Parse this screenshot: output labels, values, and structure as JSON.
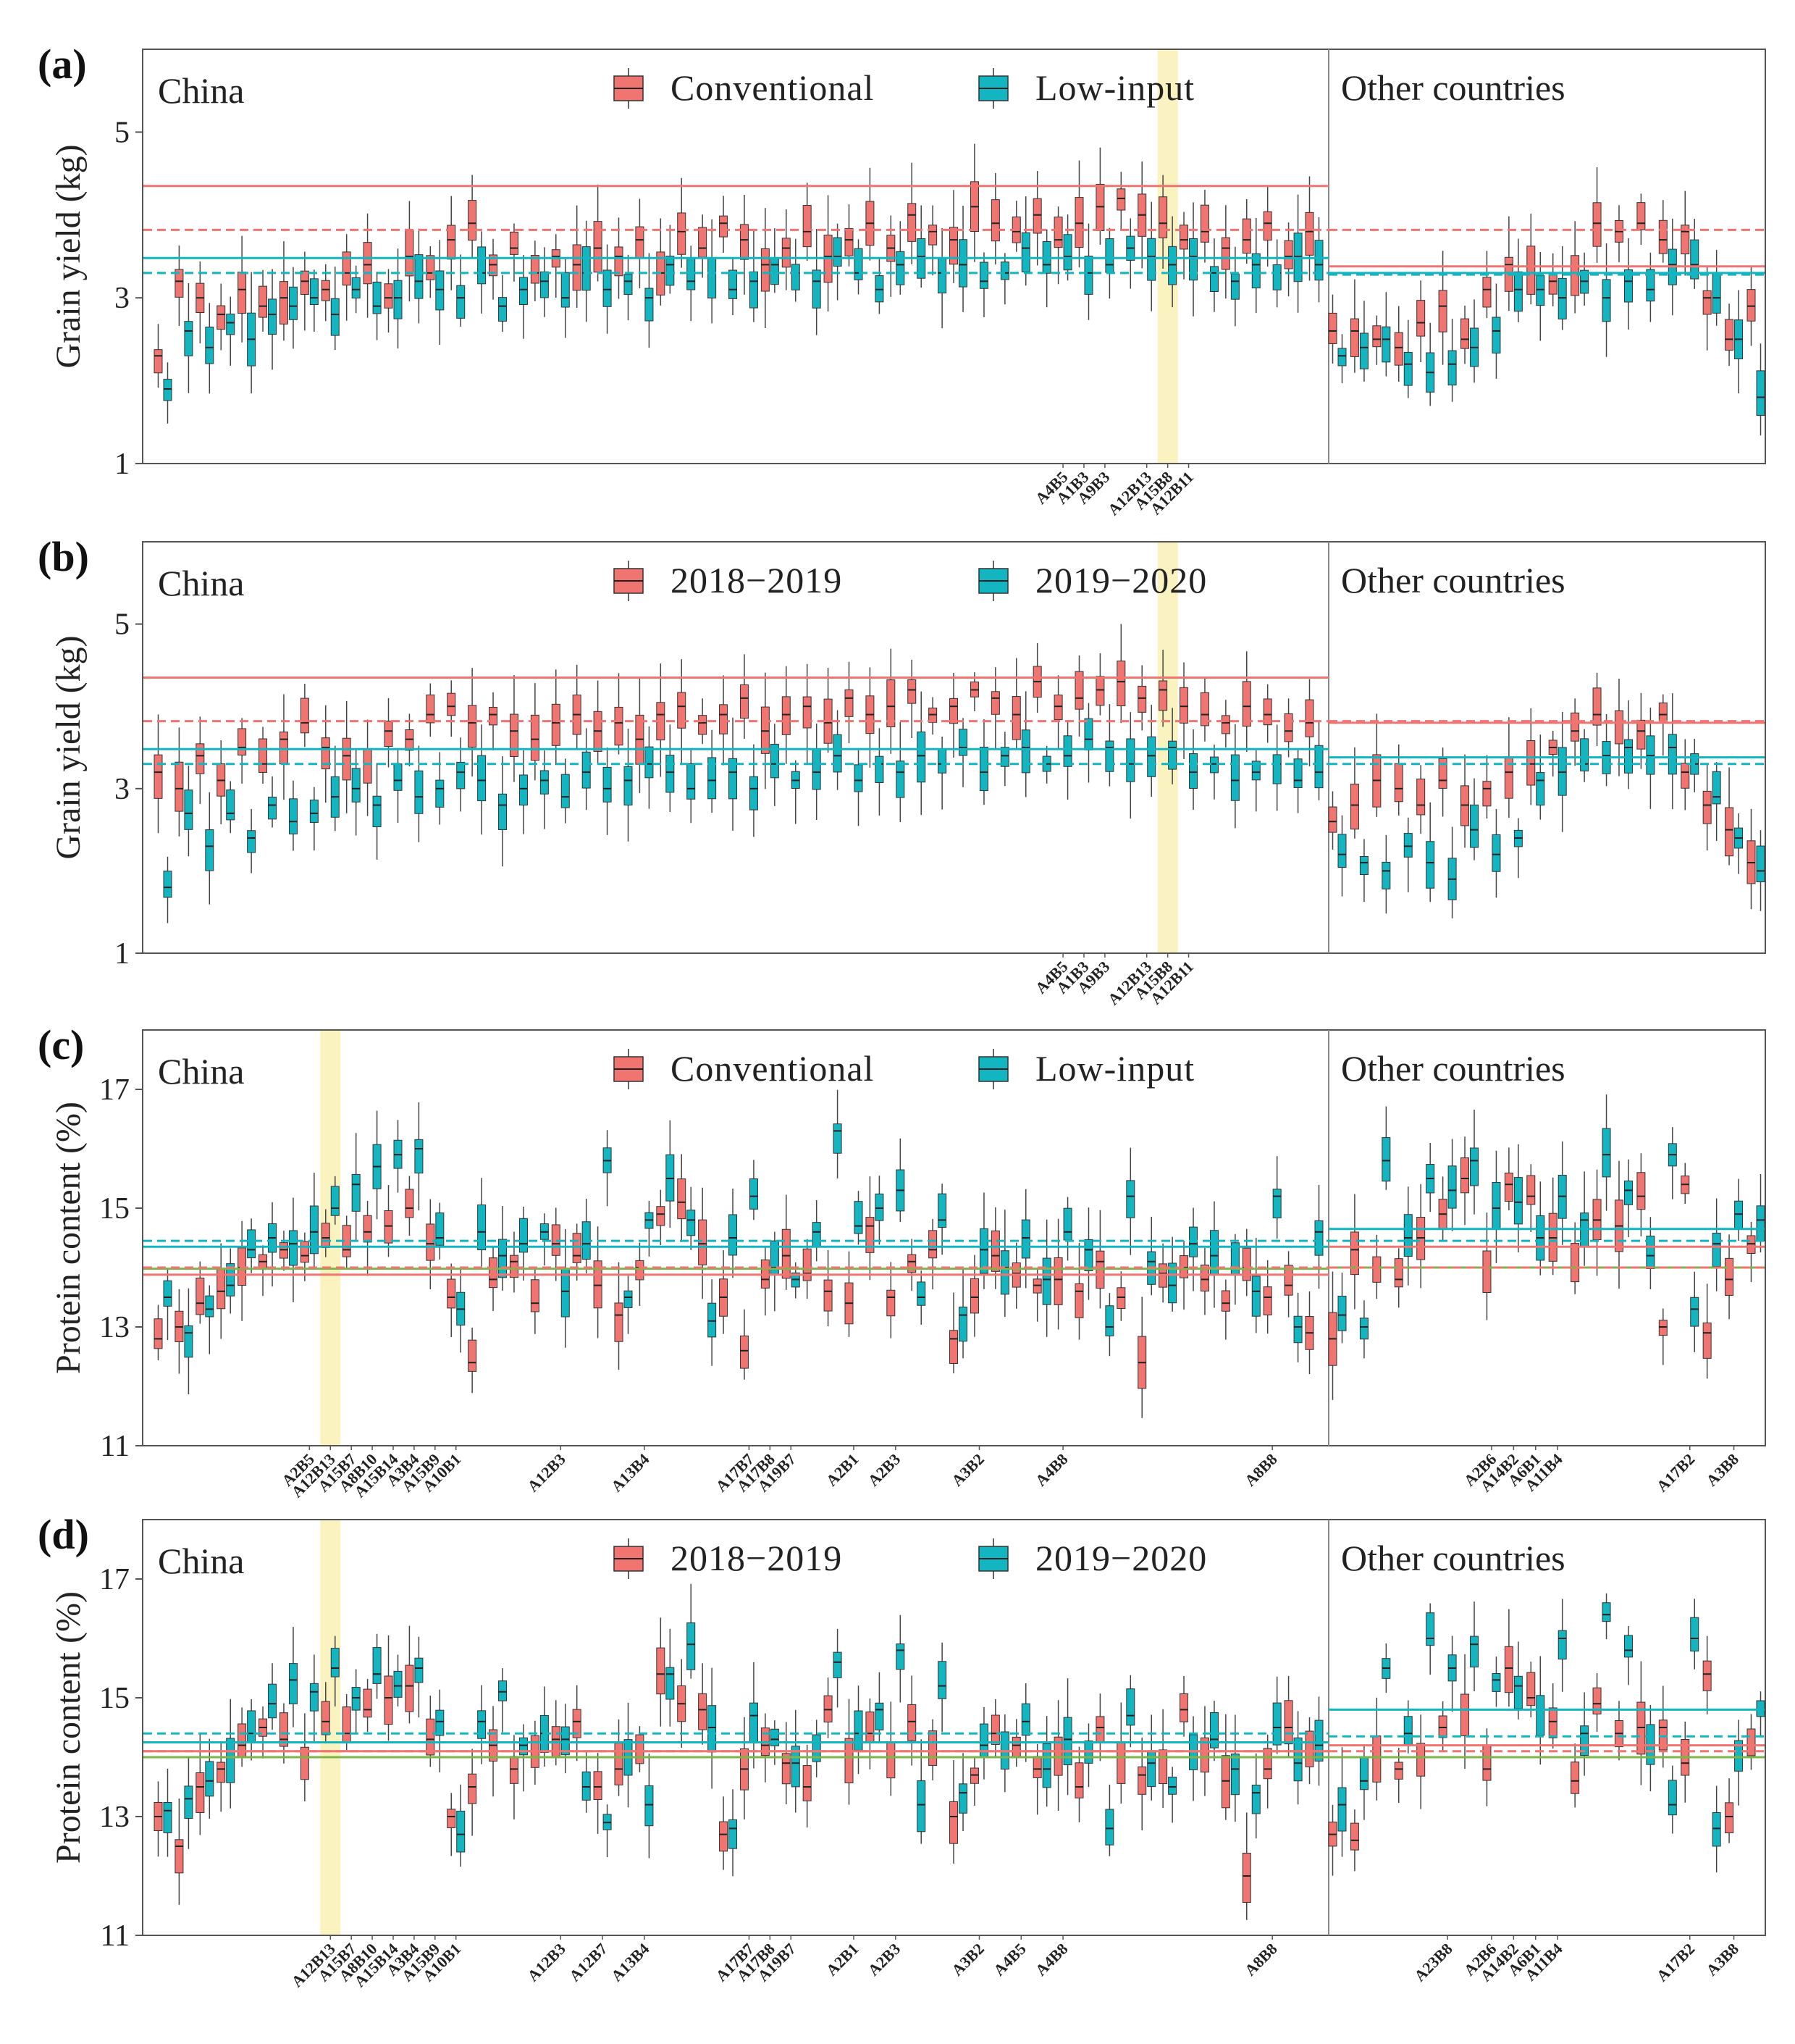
{
  "colors": {
    "conventional": "#f07470",
    "low_input": "#12b5c0",
    "mean_line_conv": "#f07470",
    "mean_line_low": "#12b5c0",
    "green_line": "#7ab648",
    "highlight": "#fbf3bf",
    "frame": "#555555",
    "whisker": "#444444"
  },
  "chart_data": [
    {
      "panel": "(a)",
      "type": "box",
      "ylabel": "Grain yield (kg)",
      "ylim": [
        1,
        6
      ],
      "yticks": [
        1,
        3,
        5
      ],
      "region_labels": [
        "China",
        "Other countries"
      ],
      "legend": [
        "Conventional",
        "Low-input"
      ],
      "n_china_groups": 56,
      "n_other_groups": 20,
      "highlight_group": 48,
      "ref_lines": {
        "china": {
          "conv_solid": 4.35,
          "conv_dash": 3.82,
          "low_solid": 3.48,
          "low_dash": 3.3
        },
        "other": {
          "conv_solid": 3.38,
          "conv_dash": 3.82,
          "low_solid": 3.3,
          "low_dash": 3.28
        }
      },
      "series": [
        {
          "name": "Conventional",
          "medians_china": [
            2.3,
            3.2,
            3.0,
            2.8,
            3.1,
            2.9,
            3.0,
            3.2,
            3.1,
            3.3,
            3.4,
            3.0,
            3.5,
            3.3,
            3.7,
            3.9,
            3.4,
            3.6,
            3.3,
            3.5,
            3.4,
            3.6,
            3.5,
            3.7,
            3.3,
            3.8,
            3.6,
            3.9,
            3.7,
            3.4,
            3.6,
            3.8,
            3.5,
            3.7,
            3.9,
            3.6,
            4.0,
            3.8,
            3.7,
            4.1,
            3.9,
            3.8,
            4.0,
            3.7,
            3.9,
            4.1,
            4.2,
            4.0,
            3.9,
            3.7,
            3.8,
            3.6,
            3.7,
            3.9,
            3.5,
            3.8
          ],
          "medians_other": [
            2.6,
            2.6,
            2.5,
            2.4,
            2.7,
            2.9,
            2.5,
            3.1,
            3.4,
            3.3,
            3.2,
            3.3,
            3.9,
            3.8,
            3.9,
            3.7,
            3.8,
            3.0,
            2.5,
            2.9
          ]
        },
        {
          "name": "Low-input",
          "medians_china": [
            1.9,
            2.6,
            2.4,
            2.7,
            2.5,
            2.8,
            2.9,
            3.0,
            2.8,
            3.1,
            2.9,
            3.0,
            3.2,
            3.1,
            3.0,
            3.3,
            2.9,
            3.1,
            3.2,
            3.0,
            3.3,
            3.1,
            3.2,
            3.0,
            3.4,
            3.2,
            3.3,
            3.1,
            3.2,
            3.4,
            3.3,
            3.2,
            3.5,
            3.3,
            3.1,
            3.4,
            3.5,
            3.3,
            3.4,
            3.2,
            3.3,
            3.6,
            3.4,
            3.5,
            3.3,
            3.4,
            3.6,
            3.5,
            3.4,
            3.5,
            3.3,
            3.2,
            3.4,
            3.3,
            3.5,
            3.4
          ],
          "medians_other": [
            2.3,
            2.4,
            2.5,
            2.2,
            2.1,
            2.2,
            2.4,
            2.6,
            3.1,
            3.1,
            3.0,
            3.2,
            3.0,
            3.2,
            3.1,
            3.4,
            3.4,
            3.0,
            2.5,
            1.8
          ]
        }
      ],
      "tick_labels": [
        {
          "label": "A4B5",
          "group": 43
        },
        {
          "label": "A1B3",
          "group": 44
        },
        {
          "label": "A9B3",
          "group": 45
        },
        {
          "label": "A12B13",
          "group": 47
        },
        {
          "label": "A15B8",
          "group": 48
        },
        {
          "label": "A12B11",
          "group": 49
        }
      ]
    },
    {
      "panel": "(b)",
      "type": "box",
      "ylabel": "Grain yield (kg)",
      "ylim": [
        1,
        6
      ],
      "yticks": [
        1,
        3,
        5
      ],
      "region_labels": [
        "China",
        "Other countries"
      ],
      "legend": [
        "2018−2019",
        "2019−2020"
      ],
      "n_china_groups": 56,
      "n_other_groups": 20,
      "highlight_group": 48,
      "ref_lines": {
        "china": {
          "conv_solid": 4.35,
          "conv_dash": 3.82,
          "low_solid": 3.48,
          "low_dash": 3.3
        },
        "other": {
          "conv_solid": 3.8,
          "conv_dash": 3.82,
          "low_solid": 3.38,
          "low_dash": 3.3
        }
      },
      "series": [
        {
          "name": "2018−2019",
          "medians_china": [
            3.2,
            3.0,
            3.4,
            3.1,
            3.5,
            3.3,
            3.6,
            3.8,
            3.5,
            3.4,
            3.3,
            3.7,
            3.6,
            3.9,
            4.0,
            3.8,
            3.9,
            3.7,
            3.6,
            3.8,
            3.9,
            3.7,
            3.8,
            3.6,
            3.9,
            4.0,
            3.8,
            3.9,
            4.1,
            3.7,
            3.9,
            4.0,
            3.8,
            4.1,
            3.9,
            4.0,
            4.2,
            3.9,
            4.0,
            4.2,
            4.1,
            3.9,
            4.3,
            4.0,
            4.1,
            4.2,
            4.3,
            4.1,
            4.2,
            4.0,
            3.9,
            3.8,
            4.0,
            3.9,
            3.7,
            3.8
          ],
          "medians_other": [
            2.6,
            2.8,
            3.1,
            3.0,
            2.8,
            3.1,
            2.8,
            3.0,
            3.2,
            3.3,
            3.5,
            3.7,
            3.9,
            3.8,
            3.7,
            3.9,
            3.2,
            2.8,
            2.5,
            2.1
          ]
        },
        {
          "name": "2019−2020",
          "medians_china": [
            1.8,
            2.7,
            2.3,
            2.7,
            2.4,
            2.8,
            2.6,
            2.7,
            2.9,
            3.0,
            2.8,
            3.1,
            2.9,
            3.0,
            3.2,
            3.1,
            2.8,
            3.0,
            3.1,
            2.9,
            3.2,
            3.0,
            3.1,
            3.3,
            3.2,
            3.0,
            3.1,
            3.2,
            3.0,
            3.3,
            3.1,
            3.2,
            3.4,
            3.1,
            3.3,
            3.2,
            3.4,
            3.3,
            3.5,
            3.2,
            3.4,
            3.5,
            3.3,
            3.4,
            3.6,
            3.5,
            3.3,
            3.4,
            3.5,
            3.2,
            3.3,
            3.1,
            3.2,
            3.3,
            3.1,
            3.2
          ],
          "medians_other": [
            2.2,
            2.1,
            2.0,
            2.3,
            2.1,
            1.9,
            2.5,
            2.2,
            2.4,
            3.1,
            3.2,
            3.3,
            3.4,
            3.5,
            3.4,
            3.5,
            3.3,
            2.9,
            2.4,
            2.0
          ]
        }
      ],
      "tick_labels": [
        {
          "label": "A4B5",
          "group": 43
        },
        {
          "label": "A1B3",
          "group": 44
        },
        {
          "label": "A9B3",
          "group": 45
        },
        {
          "label": "A12B13",
          "group": 47
        },
        {
          "label": "A15B8",
          "group": 48
        },
        {
          "label": "A12B11",
          "group": 49
        }
      ]
    },
    {
      "panel": "(c)",
      "type": "box",
      "ylabel": "Protein content (%)",
      "ylim": [
        11,
        18
      ],
      "yticks": [
        11,
        13,
        15,
        17
      ],
      "region_labels": [
        "China",
        "Other countries"
      ],
      "legend": [
        "Conventional",
        "Low-input"
      ],
      "n_china_groups": 56,
      "n_other_groups": 20,
      "highlight_group": 8,
      "ref_lines": {
        "china": {
          "conv_solid": 13.88,
          "conv_dash": 14.0,
          "low_solid": 14.35,
          "low_dash": 14.45,
          "green": 13.98
        },
        "other": {
          "conv_solid": 14.35,
          "conv_dash": 14.0,
          "low_solid": 14.65,
          "low_dash": 14.45,
          "green": 14.0
        }
      },
      "series": [
        {
          "name": "Conventional",
          "medians_china": [
            12.8,
            13.0,
            13.4,
            13.6,
            14.0,
            14.1,
            14.3,
            14.2,
            14.5,
            14.3,
            14.6,
            14.7,
            15.0,
            14.4,
            13.5,
            12.4,
            13.8,
            14.1,
            13.4,
            14.4,
            14.2,
            13.7,
            13.2,
            14.0,
            14.9,
            15.1,
            14.4,
            13.5,
            12.6,
            13.8,
            14.2,
            13.9,
            13.6,
            13.4,
            14.7,
            13.5,
            14.1,
            14.3,
            12.8,
            13.5,
            14.2,
            13.9,
            13.7,
            13.8,
            13.6,
            14.1,
            13.5,
            12.4,
            13.9,
            14.0,
            13.8,
            13.4,
            14.0,
            13.5,
            13.7,
            12.9
          ],
          "medians_other": [
            12.8,
            14.3,
            14.0,
            13.8,
            14.5,
            14.9,
            15.5,
            14.0,
            15.4,
            15.2,
            14.5,
            14.0,
            14.8,
            14.7,
            15.2,
            13.0,
            15.4,
            12.9,
            13.8,
            14.4
          ]
        },
        {
          "name": "Low-input",
          "medians_china": [
            13.5,
            12.9,
            13.3,
            13.7,
            14.3,
            14.5,
            14.4,
            14.6,
            15.0,
            15.4,
            15.7,
            15.9,
            16.0,
            14.5,
            13.3,
            14.6,
            14.2,
            14.4,
            14.6,
            13.6,
            14.4,
            15.8,
            13.5,
            14.8,
            15.5,
            14.8,
            13.1,
            14.5,
            15.2,
            14.0,
            13.8,
            14.6,
            16.3,
            14.7,
            15.0,
            15.3,
            13.5,
            14.8,
            13.2,
            14.3,
            14.0,
            14.5,
            13.8,
            14.6,
            14.3,
            13.0,
            15.2,
            14.1,
            13.7,
            14.4,
            14.2,
            14.0,
            13.6,
            15.2,
            13.0,
            14.6
          ],
          "medians_other": [
            13.2,
            13.0,
            15.8,
            14.5,
            15.5,
            15.3,
            15.8,
            15.0,
            15.1,
            14.5,
            15.2,
            14.8,
            15.9,
            15.3,
            14.2,
            15.9,
            13.3,
            14.4,
            14.9,
            14.8
          ]
        }
      ],
      "tick_labels": [
        {
          "label": "A2B5",
          "group": 7
        },
        {
          "label": "A12B13",
          "group": 8
        },
        {
          "label": "A15B7",
          "group": 9
        },
        {
          "label": "A8B10",
          "group": 10
        },
        {
          "label": "A15B14",
          "group": 11
        },
        {
          "label": "A3B4",
          "group": 12
        },
        {
          "label": "A15B9",
          "group": 13
        },
        {
          "label": "A10B1",
          "group": 14
        },
        {
          "label": "A12B3",
          "group": 19
        },
        {
          "label": "A13B4",
          "group": 23
        },
        {
          "label": "A17B7",
          "group": 28
        },
        {
          "label": "A17B8",
          "group": 29
        },
        {
          "label": "A19B7",
          "group": 30
        },
        {
          "label": "A2B1",
          "group": 33
        },
        {
          "label": "A2B3",
          "group": 35
        },
        {
          "label": "A3B2",
          "group": 39
        },
        {
          "label": "A4B8",
          "group": 43
        },
        {
          "label": "A8B8",
          "group": 53
        },
        {
          "label": "A2B6",
          "group": 63
        },
        {
          "label": "A14B2",
          "group": 64
        },
        {
          "label": "A6B1",
          "group": 65
        },
        {
          "label": "A11B4",
          "group": 66
        },
        {
          "label": "A17B2",
          "group": 72
        },
        {
          "label": "A3B8",
          "group": 74
        }
      ]
    },
    {
      "panel": "(d)",
      "type": "box",
      "ylabel": "Protein content (%)",
      "ylim": [
        11,
        18
      ],
      "yticks": [
        11,
        13,
        15,
        17
      ],
      "region_labels": [
        "China",
        "Other countries"
      ],
      "legend": [
        "2018−2019",
        "2019−2020"
      ],
      "n_china_groups": 56,
      "n_other_groups": 20,
      "highlight_group": 8,
      "ref_lines": {
        "china": {
          "conv_solid": 14.1,
          "conv_dash": 14.1,
          "low_solid": 14.25,
          "low_dash": 14.4,
          "green": 14.0
        },
        "other": {
          "conv_solid": 14.2,
          "conv_dash": 14.1,
          "low_solid": 14.8,
          "low_dash": 14.35,
          "green": 14.0
        }
      },
      "series": [
        {
          "name": "2018−2019",
          "medians_china": [
            13.0,
            12.5,
            13.5,
            13.8,
            14.2,
            14.5,
            14.3,
            14.0,
            14.6,
            14.4,
            14.8,
            15.0,
            15.2,
            14.3,
            13.0,
            13.5,
            14.2,
            13.8,
            14.0,
            14.3,
            14.6,
            13.5,
            13.8,
            14.0,
            15.4,
            14.9,
            14.8,
            12.7,
            13.8,
            14.2,
            13.9,
            13.5,
            14.8,
            14.0,
            14.4,
            14.1,
            14.6,
            14.0,
            13.0,
            13.7,
            14.4,
            14.2,
            13.8,
            14.1,
            13.5,
            14.5,
            14.0,
            13.7,
            14.0,
            14.8,
            14.1,
            13.6,
            12.0,
            13.8,
            14.5,
            14.0
          ],
          "medians_other": [
            12.7,
            12.6,
            14.0,
            13.8,
            14.0,
            14.5,
            14.8,
            13.8,
            15.5,
            15.0,
            14.6,
            13.6,
            14.9,
            14.4,
            14.5,
            14.5,
            13.9,
            15.4,
            13.0,
            14.2
          ]
        },
        {
          "name": "2019−2020",
          "medians_china": [
            13.1,
            13.3,
            13.6,
            14.0,
            14.4,
            14.9,
            15.3,
            15.1,
            15.5,
            15.0,
            15.4,
            15.2,
            15.5,
            14.6,
            12.7,
            14.6,
            15.1,
            14.2,
            14.4,
            14.3,
            13.5,
            12.9,
            14.1,
            13.2,
            15.4,
            15.9,
            14.5,
            12.8,
            14.7,
            14.3,
            13.9,
            14.1,
            15.6,
            14.4,
            14.8,
            15.8,
            13.2,
            15.2,
            13.4,
            14.2,
            14.0,
            14.6,
            13.8,
            14.3,
            14.1,
            12.8,
            14.7,
            13.9,
            13.5,
            14.0,
            14.3,
            13.8,
            13.4,
            14.5,
            13.9,
            14.2
          ],
          "medians_other": [
            13.2,
            13.6,
            15.5,
            14.4,
            16.0,
            15.5,
            15.9,
            15.3,
            15.2,
            14.8,
            16.0,
            14.4,
            16.4,
            15.8,
            14.1,
            13.2,
            16.0,
            12.8,
            14.0,
            14.8
          ]
        }
      ],
      "tick_labels": [
        {
          "label": "A12B13",
          "group": 8
        },
        {
          "label": "A15B7",
          "group": 9
        },
        {
          "label": "A8B10",
          "group": 10
        },
        {
          "label": "A15B14",
          "group": 11
        },
        {
          "label": "A3B4",
          "group": 12
        },
        {
          "label": "A15B9",
          "group": 13
        },
        {
          "label": "A10B1",
          "group": 14
        },
        {
          "label": "A12B3",
          "group": 19
        },
        {
          "label": "A12B7",
          "group": 21
        },
        {
          "label": "A13B4",
          "group": 23
        },
        {
          "label": "A17B7",
          "group": 28
        },
        {
          "label": "A17B8",
          "group": 29
        },
        {
          "label": "A19B7",
          "group": 30
        },
        {
          "label": "A2B1",
          "group": 33
        },
        {
          "label": "A2B3",
          "group": 35
        },
        {
          "label": "A3B2",
          "group": 39
        },
        {
          "label": "A4B5",
          "group": 41
        },
        {
          "label": "A4B8",
          "group": 43
        },
        {
          "label": "A8B8",
          "group": 53
        },
        {
          "label": "A23B8",
          "group": 61
        },
        {
          "label": "A2B6",
          "group": 63
        },
        {
          "label": "A14B2",
          "group": 64
        },
        {
          "label": "A6B1",
          "group": 65
        },
        {
          "label": "A11B4",
          "group": 66
        },
        {
          "label": "A17B2",
          "group": 72
        },
        {
          "label": "A3B8",
          "group": 74
        }
      ]
    }
  ]
}
